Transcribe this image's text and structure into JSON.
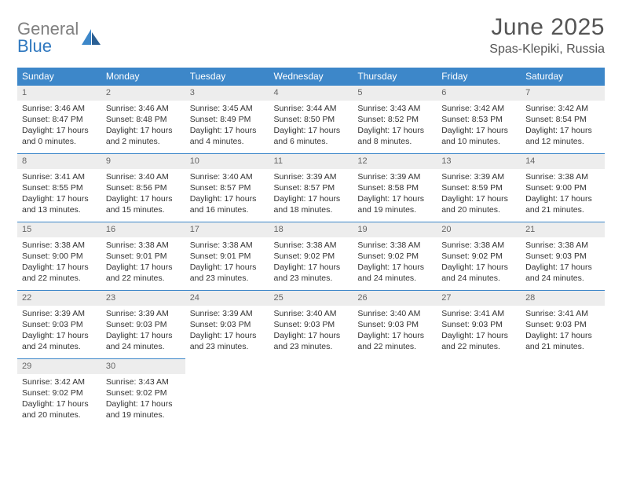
{
  "logo": {
    "gray": "General",
    "blue": "Blue"
  },
  "title": "June 2025",
  "subtitle": "Spas-Klepiki, Russia",
  "colors": {
    "header_bg": "#3d87c9",
    "header_fg": "#ffffff",
    "daynum_bg": "#ededed",
    "daynum_fg": "#666666",
    "rule": "#3d87c9",
    "logo_gray": "#808080",
    "logo_blue": "#2f78bf"
  },
  "weekdays": [
    "Sunday",
    "Monday",
    "Tuesday",
    "Wednesday",
    "Thursday",
    "Friday",
    "Saturday"
  ],
  "weeks": [
    [
      {
        "n": "1",
        "sr": "3:46 AM",
        "ss": "8:47 PM",
        "dl": "17 hours and 0 minutes."
      },
      {
        "n": "2",
        "sr": "3:46 AM",
        "ss": "8:48 PM",
        "dl": "17 hours and 2 minutes."
      },
      {
        "n": "3",
        "sr": "3:45 AM",
        "ss": "8:49 PM",
        "dl": "17 hours and 4 minutes."
      },
      {
        "n": "4",
        "sr": "3:44 AM",
        "ss": "8:50 PM",
        "dl": "17 hours and 6 minutes."
      },
      {
        "n": "5",
        "sr": "3:43 AM",
        "ss": "8:52 PM",
        "dl": "17 hours and 8 minutes."
      },
      {
        "n": "6",
        "sr": "3:42 AM",
        "ss": "8:53 PM",
        "dl": "17 hours and 10 minutes."
      },
      {
        "n": "7",
        "sr": "3:42 AM",
        "ss": "8:54 PM",
        "dl": "17 hours and 12 minutes."
      }
    ],
    [
      {
        "n": "8",
        "sr": "3:41 AM",
        "ss": "8:55 PM",
        "dl": "17 hours and 13 minutes."
      },
      {
        "n": "9",
        "sr": "3:40 AM",
        "ss": "8:56 PM",
        "dl": "17 hours and 15 minutes."
      },
      {
        "n": "10",
        "sr": "3:40 AM",
        "ss": "8:57 PM",
        "dl": "17 hours and 16 minutes."
      },
      {
        "n": "11",
        "sr": "3:39 AM",
        "ss": "8:57 PM",
        "dl": "17 hours and 18 minutes."
      },
      {
        "n": "12",
        "sr": "3:39 AM",
        "ss": "8:58 PM",
        "dl": "17 hours and 19 minutes."
      },
      {
        "n": "13",
        "sr": "3:39 AM",
        "ss": "8:59 PM",
        "dl": "17 hours and 20 minutes."
      },
      {
        "n": "14",
        "sr": "3:38 AM",
        "ss": "9:00 PM",
        "dl": "17 hours and 21 minutes."
      }
    ],
    [
      {
        "n": "15",
        "sr": "3:38 AM",
        "ss": "9:00 PM",
        "dl": "17 hours and 22 minutes."
      },
      {
        "n": "16",
        "sr": "3:38 AM",
        "ss": "9:01 PM",
        "dl": "17 hours and 22 minutes."
      },
      {
        "n": "17",
        "sr": "3:38 AM",
        "ss": "9:01 PM",
        "dl": "17 hours and 23 minutes."
      },
      {
        "n": "18",
        "sr": "3:38 AM",
        "ss": "9:02 PM",
        "dl": "17 hours and 23 minutes."
      },
      {
        "n": "19",
        "sr": "3:38 AM",
        "ss": "9:02 PM",
        "dl": "17 hours and 24 minutes."
      },
      {
        "n": "20",
        "sr": "3:38 AM",
        "ss": "9:02 PM",
        "dl": "17 hours and 24 minutes."
      },
      {
        "n": "21",
        "sr": "3:38 AM",
        "ss": "9:03 PM",
        "dl": "17 hours and 24 minutes."
      }
    ],
    [
      {
        "n": "22",
        "sr": "3:39 AM",
        "ss": "9:03 PM",
        "dl": "17 hours and 24 minutes."
      },
      {
        "n": "23",
        "sr": "3:39 AM",
        "ss": "9:03 PM",
        "dl": "17 hours and 24 minutes."
      },
      {
        "n": "24",
        "sr": "3:39 AM",
        "ss": "9:03 PM",
        "dl": "17 hours and 23 minutes."
      },
      {
        "n": "25",
        "sr": "3:40 AM",
        "ss": "9:03 PM",
        "dl": "17 hours and 23 minutes."
      },
      {
        "n": "26",
        "sr": "3:40 AM",
        "ss": "9:03 PM",
        "dl": "17 hours and 22 minutes."
      },
      {
        "n": "27",
        "sr": "3:41 AM",
        "ss": "9:03 PM",
        "dl": "17 hours and 22 minutes."
      },
      {
        "n": "28",
        "sr": "3:41 AM",
        "ss": "9:03 PM",
        "dl": "17 hours and 21 minutes."
      }
    ],
    [
      {
        "n": "29",
        "sr": "3:42 AM",
        "ss": "9:02 PM",
        "dl": "17 hours and 20 minutes."
      },
      {
        "n": "30",
        "sr": "3:43 AM",
        "ss": "9:02 PM",
        "dl": "17 hours and 19 minutes."
      },
      null,
      null,
      null,
      null,
      null
    ]
  ],
  "labels": {
    "sunrise": "Sunrise: ",
    "sunset": "Sunset: ",
    "daylight": "Daylight: "
  }
}
